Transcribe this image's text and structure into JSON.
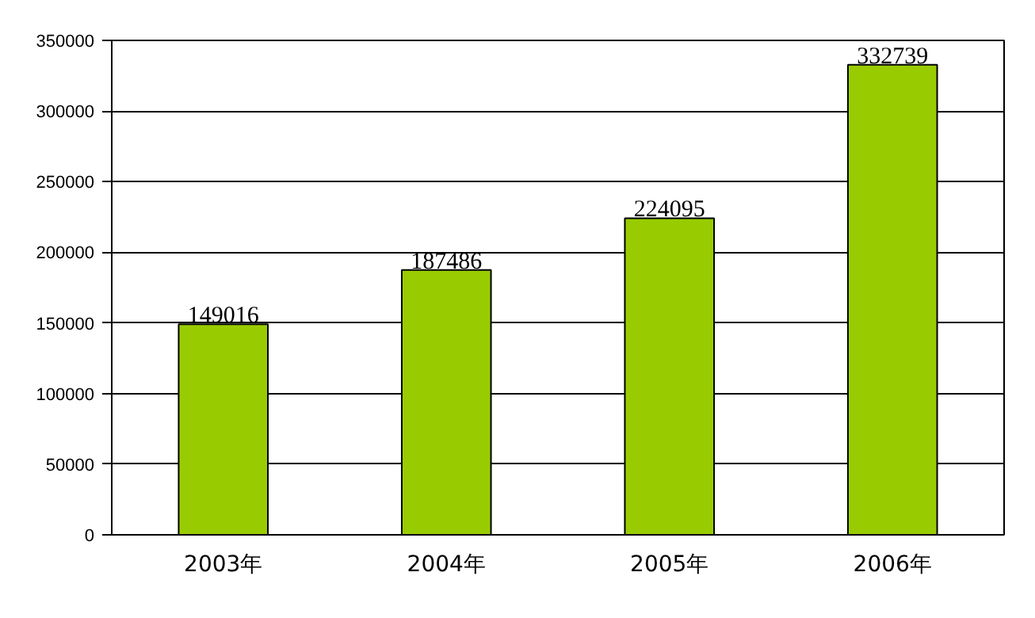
{
  "chart_data": {
    "type": "bar",
    "categories": [
      "2003年",
      "2004年",
      "2005年",
      "2006年"
    ],
    "values": [
      149016,
      187486,
      224095,
      332739
    ],
    "color": "#99cc00",
    "ylim": [
      0,
      350000
    ],
    "yticks": [
      0,
      50000,
      100000,
      150000,
      200000,
      250000,
      300000,
      350000
    ],
    "grid": "y",
    "data_labels": true
  }
}
